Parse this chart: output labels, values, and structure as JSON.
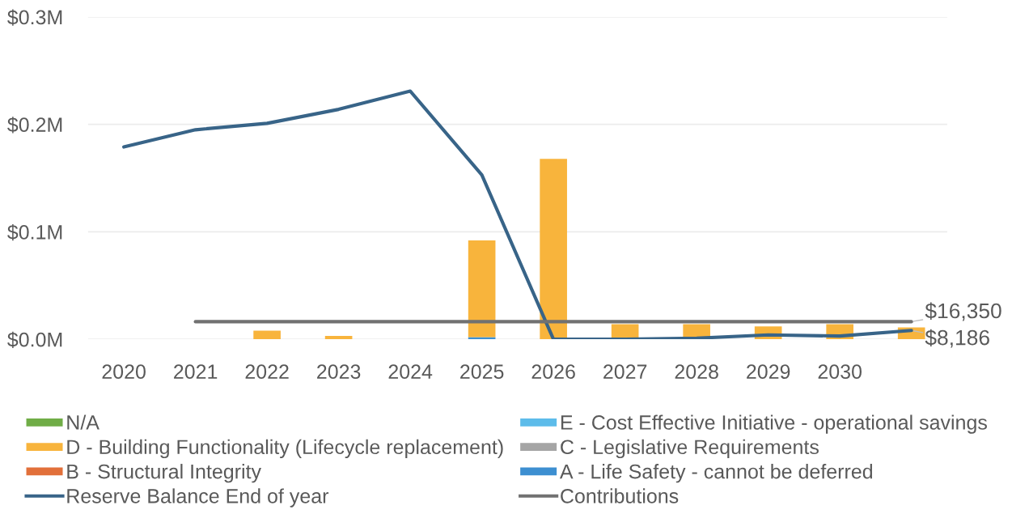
{
  "chart_data": {
    "type": "bar",
    "stacked": true,
    "categories": [
      "2020",
      "2021",
      "2022",
      "2023",
      "2024",
      "2025",
      "2026",
      "2027",
      "2028",
      "2029",
      "2030",
      null
    ],
    "series": [
      {
        "name": "A - Life Safety - cannot be deferred",
        "color": "#3d8fd1",
        "values": [
          null,
          null,
          null,
          null,
          null,
          2000,
          null,
          null,
          null,
          null,
          null,
          null
        ]
      },
      {
        "name": "B - Structural Integrity",
        "color": "#e2703a",
        "values": [
          null,
          null,
          null,
          null,
          null,
          null,
          null,
          null,
          null,
          null,
          null,
          null
        ]
      },
      {
        "name": "C - Legislative Requirements",
        "color": "#a5a5a5",
        "values": [
          null,
          null,
          null,
          null,
          null,
          null,
          null,
          null,
          null,
          null,
          null,
          null
        ]
      },
      {
        "name": "D - Building Functionality (Lifecycle replacement)",
        "color": "#f8b43c",
        "values": [
          null,
          null,
          8000,
          3000,
          null,
          90000,
          168000,
          14000,
          14000,
          12000,
          14000,
          11000
        ]
      },
      {
        "name": "E - Cost Effective Initiative - operational savings",
        "color": "#5dbcea",
        "values": [
          null,
          null,
          null,
          null,
          null,
          null,
          null,
          null,
          null,
          null,
          null,
          null
        ]
      },
      {
        "name": "N/A",
        "color": "#70ad47",
        "values": [
          null,
          null,
          null,
          null,
          null,
          null,
          null,
          null,
          null,
          null,
          null,
          null
        ]
      },
      {
        "name": "Reserve Balance End of year",
        "type": "line",
        "color": "#386488",
        "values": [
          179000,
          195000,
          201000,
          214000,
          231000,
          153000,
          0,
          0,
          1000,
          4000,
          3000,
          8186
        ],
        "value_labels": [
          null,
          null,
          null,
          null,
          null,
          null,
          null,
          null,
          null,
          null,
          null,
          "$8,186"
        ]
      },
      {
        "name": "Contributions",
        "type": "line",
        "color": "#717171",
        "values": [
          null,
          16350,
          16350,
          16350,
          16350,
          16350,
          16350,
          16350,
          16350,
          16350,
          16350,
          16350
        ],
        "value_labels": [
          null,
          null,
          null,
          null,
          null,
          null,
          null,
          null,
          null,
          null,
          null,
          "$16,350"
        ]
      }
    ],
    "ylim": [
      0,
      300000
    ],
    "yticks": [
      {
        "value": 0,
        "label": "$0.0M"
      },
      {
        "value": 100000,
        "label": "$0.1M"
      },
      {
        "value": 200000,
        "label": "$0.2M"
      },
      {
        "value": 300000,
        "label": "$0.3M"
      }
    ],
    "grid": "y",
    "legend": "bottom"
  }
}
